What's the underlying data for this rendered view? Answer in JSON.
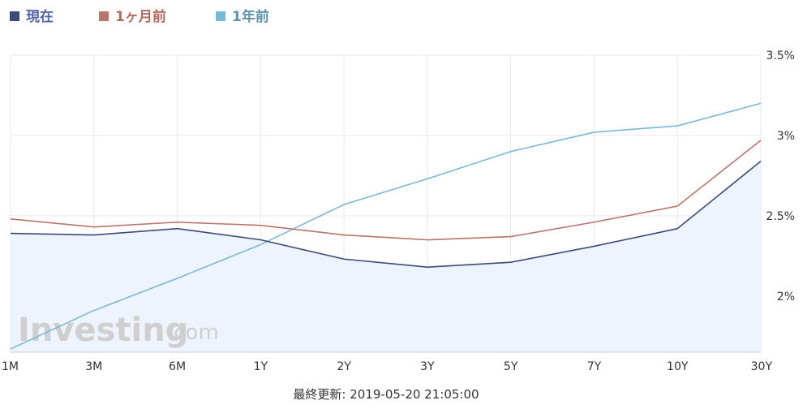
{
  "chart_data": {
    "type": "line",
    "categories": [
      "1M",
      "3M",
      "6M",
      "1Y",
      "2Y",
      "3Y",
      "5Y",
      "7Y",
      "10Y",
      "30Y"
    ],
    "series": [
      {
        "name": "現在",
        "color": "#3c4a78",
        "values": [
          2.39,
          2.38,
          2.42,
          2.35,
          2.23,
          2.18,
          2.21,
          2.31,
          2.42,
          2.84
        ]
      },
      {
        "name": "1ヶ月前",
        "color": "#b87569",
        "values": [
          2.48,
          2.43,
          2.46,
          2.44,
          2.38,
          2.35,
          2.37,
          2.46,
          2.56,
          2.97
        ]
      },
      {
        "name": "1年前",
        "color": "#7ab8d6",
        "values": [
          1.67,
          1.91,
          2.11,
          2.32,
          2.57,
          2.73,
          2.9,
          3.02,
          3.06,
          3.2
        ]
      }
    ],
    "yticks": [
      "2%",
      "2.5%",
      "3%",
      "3.5%"
    ],
    "ytick_values": [
      2.0,
      2.5,
      3.0,
      3.5
    ],
    "ylim": [
      1.65,
      3.5
    ],
    "grid": true,
    "legend_position": "top-left",
    "area_fill_series": "現在",
    "area_color": "#eef4fd"
  },
  "watermark": {
    "brand": "Investing",
    "suffix": ".com"
  },
  "footer": {
    "last_updated": "最終更新: 2019-05-20 21:05:00"
  }
}
